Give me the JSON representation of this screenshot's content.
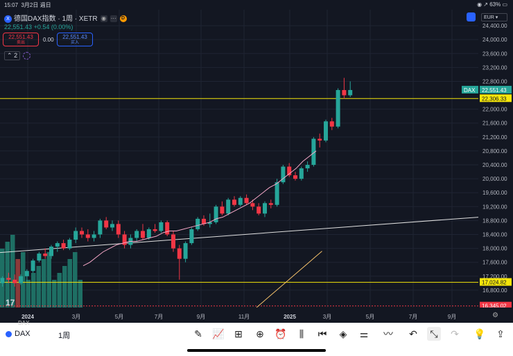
{
  "status_bar": {
    "time": "15:07",
    "date": "3月2日 週日",
    "battery": "63%"
  },
  "symbol": {
    "badge": "X",
    "title": "德国DAX指数 · 1周 · XETR",
    "d_badge": "D",
    "price": "22,551.43",
    "change": "+0.54 (0.00%)"
  },
  "trade": {
    "sell_price": "22,551.43",
    "sell_label": "卖出",
    "spread": "0.00",
    "buy_price": "22,551.43",
    "buy_label": "买入"
  },
  "indicators": {
    "count": "2"
  },
  "currency": "EUR",
  "logo": "17",
  "price_axis": {
    "ticks": [
      "24,400.00",
      "24,000.00",
      "23,600.00",
      "23,200.00",
      "22,800.00",
      "22,000.00",
      "21,600.00",
      "21,200.00",
      "20,800.00",
      "20,400.00",
      "20,000.00",
      "19,600.00",
      "19,200.00",
      "18,800.00",
      "18,400.00",
      "18,000.00",
      "17,600.00",
      "17,200.00",
      "16,800.00"
    ],
    "tick_values": [
      24400,
      24000,
      23600,
      23200,
      22800,
      22000,
      21600,
      21200,
      20800,
      20400,
      20000,
      19600,
      19200,
      18800,
      18400,
      18000,
      17600,
      17200,
      16800
    ],
    "labels": [
      {
        "text": "22,551.43",
        "prefix": "DAX",
        "value": 22551.43,
        "color": "#26a69a"
      },
      {
        "text": "22,306.33",
        "value": 22306.33,
        "color": "#f5e60a"
      },
      {
        "text": "17,024.82",
        "value": 17024.82,
        "color": "#f5e60a"
      },
      {
        "text": "16,345.02",
        "value": 16345.02,
        "color": "#f23645"
      }
    ]
  },
  "time_axis": [
    "2024",
    "3月",
    "5月",
    "7月",
    "9月",
    "11月",
    "2025",
    "3月",
    "5月",
    "7月",
    "9月"
  ],
  "chart_data": {
    "type": "candlestick",
    "interval": "1周",
    "ylim": [
      16300,
      24700
    ],
    "hlines": [
      22306.33,
      17024.82
    ],
    "trendline": {
      "from": [
        0,
        17600
      ],
      "to": [
        108,
        19000
      ]
    },
    "candles": [
      [
        17000,
        17200,
        16900,
        17150
      ],
      [
        17150,
        17300,
        17000,
        17100
      ],
      [
        17100,
        17250,
        16900,
        17000
      ],
      [
        17000,
        17250,
        16950,
        17200
      ],
      [
        17200,
        17400,
        17050,
        17350
      ],
      [
        17350,
        17700,
        17300,
        17650
      ],
      [
        17650,
        17900,
        17600,
        17850
      ],
      [
        17850,
        18000,
        17700,
        17780
      ],
      [
        17780,
        18100,
        17700,
        18050
      ],
      [
        18050,
        18200,
        17900,
        18150
      ],
      [
        18150,
        18250,
        17950,
        18000
      ],
      [
        18000,
        18300,
        17950,
        18250
      ],
      [
        18250,
        18600,
        18150,
        18500
      ],
      [
        18500,
        18600,
        18300,
        18400
      ],
      [
        18400,
        18550,
        18200,
        18300
      ],
      [
        18300,
        18500,
        18200,
        18400
      ],
      [
        18400,
        18850,
        18300,
        18800
      ],
      [
        18800,
        18900,
        18550,
        18600
      ],
      [
        18600,
        18800,
        18500,
        18700
      ],
      [
        18700,
        18800,
        18300,
        18400
      ],
      [
        18400,
        18500,
        18000,
        18100
      ],
      [
        18100,
        18400,
        18000,
        18300
      ],
      [
        18300,
        18550,
        18200,
        18500
      ],
      [
        18500,
        18700,
        18250,
        18300
      ],
      [
        18300,
        18600,
        18250,
        18550
      ],
      [
        18550,
        18700,
        18450,
        18500
      ],
      [
        18500,
        18800,
        18450,
        18750
      ],
      [
        18750,
        18800,
        18350,
        18400
      ],
      [
        18400,
        18500,
        17900,
        18000
      ],
      [
        18000,
        18100,
        17100,
        17700
      ],
      [
        17700,
        18200,
        17600,
        18150
      ],
      [
        18150,
        18600,
        18100,
        18550
      ],
      [
        18550,
        18900,
        18500,
        18850
      ],
      [
        18850,
        18950,
        18650,
        18700
      ],
      [
        18700,
        19000,
        18600,
        18750
      ],
      [
        18750,
        19250,
        18700,
        19200
      ],
      [
        19200,
        19350,
        18950,
        19000
      ],
      [
        19000,
        19450,
        18950,
        19400
      ],
      [
        19400,
        19500,
        19200,
        19250
      ],
      [
        19250,
        19500,
        19200,
        19450
      ],
      [
        19450,
        19550,
        19250,
        19300
      ],
      [
        19300,
        19400,
        19100,
        19200
      ],
      [
        19200,
        19300,
        18950,
        19000
      ],
      [
        19000,
        19350,
        18900,
        19300
      ],
      [
        19300,
        19400,
        19150,
        19250
      ],
      [
        19250,
        20000,
        19200,
        19900
      ],
      [
        19900,
        20400,
        19850,
        20350
      ],
      [
        20350,
        20450,
        20050,
        20100
      ],
      [
        20100,
        20200,
        19950,
        20000
      ],
      [
        20000,
        20350,
        19950,
        20300
      ],
      [
        20300,
        20500,
        20200,
        20400
      ],
      [
        20400,
        21200,
        20350,
        21150
      ],
      [
        21150,
        21300,
        20900,
        21100
      ],
      [
        21100,
        21700,
        21050,
        21650
      ],
      [
        21650,
        21750,
        21400,
        21500
      ],
      [
        21500,
        22600,
        21450,
        22550
      ],
      [
        22550,
        22900,
        22300,
        22400
      ],
      [
        22400,
        22800,
        22350,
        22551
      ]
    ],
    "ma": {
      "color": "#f7a8c8",
      "offset": 36,
      "values": [
        17500,
        17600,
        17750,
        17900,
        18000,
        18100,
        18150,
        18200,
        18200,
        18250,
        18300,
        18350,
        18450,
        18500,
        18500,
        18550,
        18600,
        18650,
        18700,
        18750,
        18850,
        18900,
        19000,
        19100,
        19200,
        19300,
        19450,
        19600,
        19750,
        19850,
        20000,
        20150,
        20300,
        20500,
        20650,
        20800
      ]
    },
    "ma2": {
      "color": "#f6c26b",
      "offset": 46,
      "values": [
        16300,
        16400,
        16500,
        16600,
        16700,
        16800,
        16900,
        17000,
        17100,
        17200
      ]
    },
    "volume_bars": 16
  },
  "bottom_bar": {
    "symbol": "DAX",
    "interval": "1周",
    "ghost_text": "DAX"
  }
}
